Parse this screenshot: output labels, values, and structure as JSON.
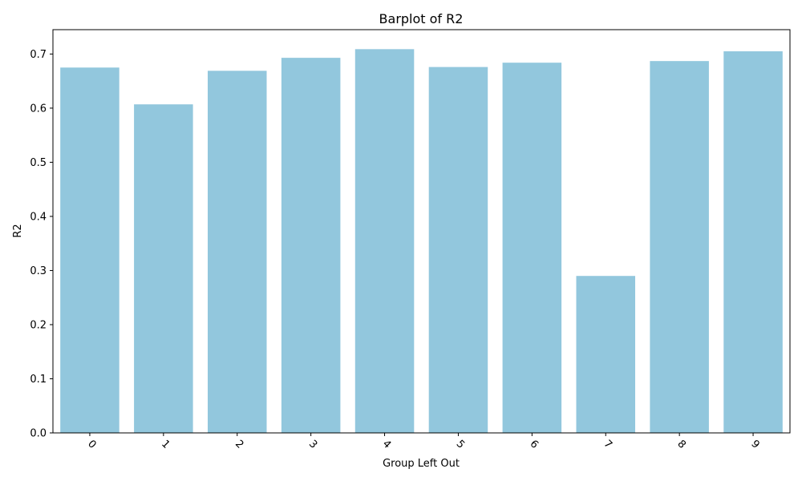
{
  "chart_data": {
    "type": "bar",
    "title": "Barplot of R2",
    "xlabel": "Group Left Out",
    "ylabel": "R2",
    "categories": [
      "0",
      "1",
      "2",
      "3",
      "4",
      "5",
      "6",
      "7",
      "8",
      "9"
    ],
    "values": [
      0.675,
      0.607,
      0.669,
      0.693,
      0.709,
      0.676,
      0.684,
      0.29,
      0.687,
      0.705
    ],
    "ylim": [
      0,
      0.745
    ],
    "yticks": [
      0.0,
      0.1,
      0.2,
      0.3,
      0.4,
      0.5,
      0.6,
      0.7
    ],
    "ytick_labels": [
      "0.0",
      "0.1",
      "0.2",
      "0.3",
      "0.4",
      "0.5",
      "0.6",
      "0.7"
    ],
    "xtick_rotation_deg": 45,
    "bar_color": "#92c7dd",
    "grid": false,
    "legend": false
  }
}
